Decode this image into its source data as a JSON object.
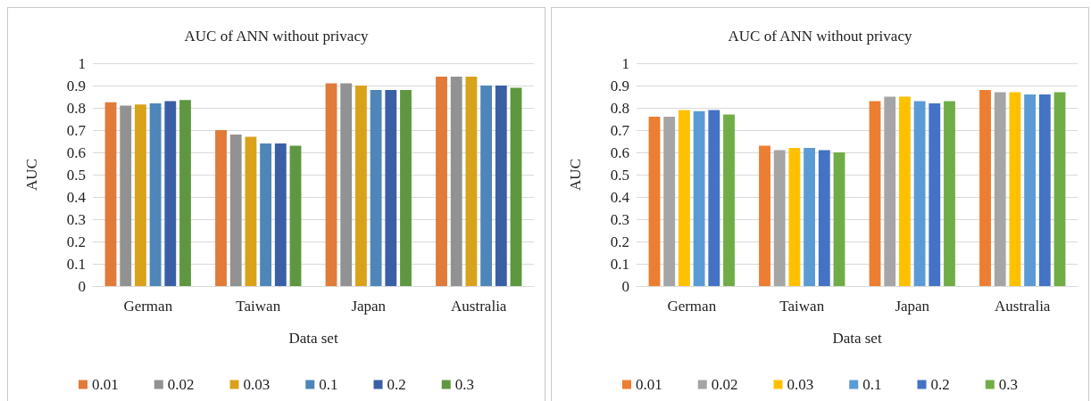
{
  "chart_data": [
    {
      "type": "bar",
      "title": "AUC of ANN without privacy",
      "xlabel": "Data set",
      "ylabel": "AUC",
      "categories": [
        "German",
        "Taiwan",
        "Japan",
        "Australia"
      ],
      "ylim": [
        0,
        1
      ],
      "yticks": [
        0,
        0.1,
        0.2,
        0.3,
        0.4,
        0.5,
        0.6,
        0.7,
        0.8,
        0.9,
        1
      ],
      "grid": "y",
      "legend": "bottom",
      "series": [
        {
          "name": "0.01",
          "color": "#e07b39",
          "values": [
            0.825,
            0.7,
            0.91,
            0.94
          ]
        },
        {
          "name": "0.02",
          "color": "#929292",
          "values": [
            0.81,
            0.68,
            0.91,
            0.94
          ]
        },
        {
          "name": "0.03",
          "color": "#d9a21b",
          "values": [
            0.815,
            0.67,
            0.9,
            0.94
          ]
        },
        {
          "name": "0.1",
          "color": "#4e86b8",
          "values": [
            0.82,
            0.64,
            0.88,
            0.9
          ]
        },
        {
          "name": "0.2",
          "color": "#3a5fa5",
          "values": [
            0.83,
            0.64,
            0.88,
            0.9
          ]
        },
        {
          "name": "0.3",
          "color": "#5e9740",
          "values": [
            0.835,
            0.63,
            0.88,
            0.89
          ]
        }
      ]
    },
    {
      "type": "bar",
      "title": "AUC of ANN without privacy",
      "xlabel": "Data set",
      "ylabel": "AUC",
      "categories": [
        "German",
        "Taiwan",
        "Japan",
        "Australia"
      ],
      "ylim": [
        0,
        1
      ],
      "yticks": [
        0,
        0.1,
        0.2,
        0.3,
        0.4,
        0.5,
        0.6,
        0.7,
        0.8,
        0.9,
        1
      ],
      "grid": "y",
      "legend": "bottom",
      "series": [
        {
          "name": "0.01",
          "color": "#ed7d31",
          "values": [
            0.76,
            0.63,
            0.83,
            0.88
          ]
        },
        {
          "name": "0.02",
          "color": "#a5a5a5",
          "values": [
            0.76,
            0.61,
            0.85,
            0.87
          ]
        },
        {
          "name": "0.03",
          "color": "#ffc000",
          "values": [
            0.79,
            0.62,
            0.85,
            0.87
          ]
        },
        {
          "name": "0.1",
          "color": "#5b9bd5",
          "values": [
            0.785,
            0.62,
            0.83,
            0.86
          ]
        },
        {
          "name": "0.2",
          "color": "#4472c4",
          "values": [
            0.79,
            0.61,
            0.82,
            0.86
          ]
        },
        {
          "name": "0.3",
          "color": "#70ad47",
          "values": [
            0.77,
            0.6,
            0.83,
            0.87
          ]
        }
      ]
    }
  ]
}
